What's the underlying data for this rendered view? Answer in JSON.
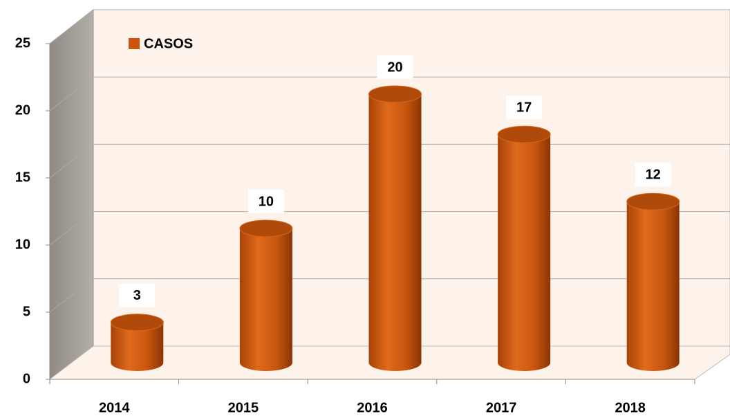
{
  "chart_data": {
    "type": "bar3d",
    "categories": [
      "2014",
      "2015",
      "2016",
      "2017",
      "2018"
    ],
    "series": [
      {
        "name": "CASOS",
        "color": "#c8560e",
        "values": [
          3,
          10,
          20,
          17,
          12
        ]
      }
    ],
    "ylim": [
      0,
      25
    ],
    "yticks": [
      0,
      5,
      10,
      15,
      20,
      25
    ],
    "grid": true,
    "legend": "top-left"
  }
}
